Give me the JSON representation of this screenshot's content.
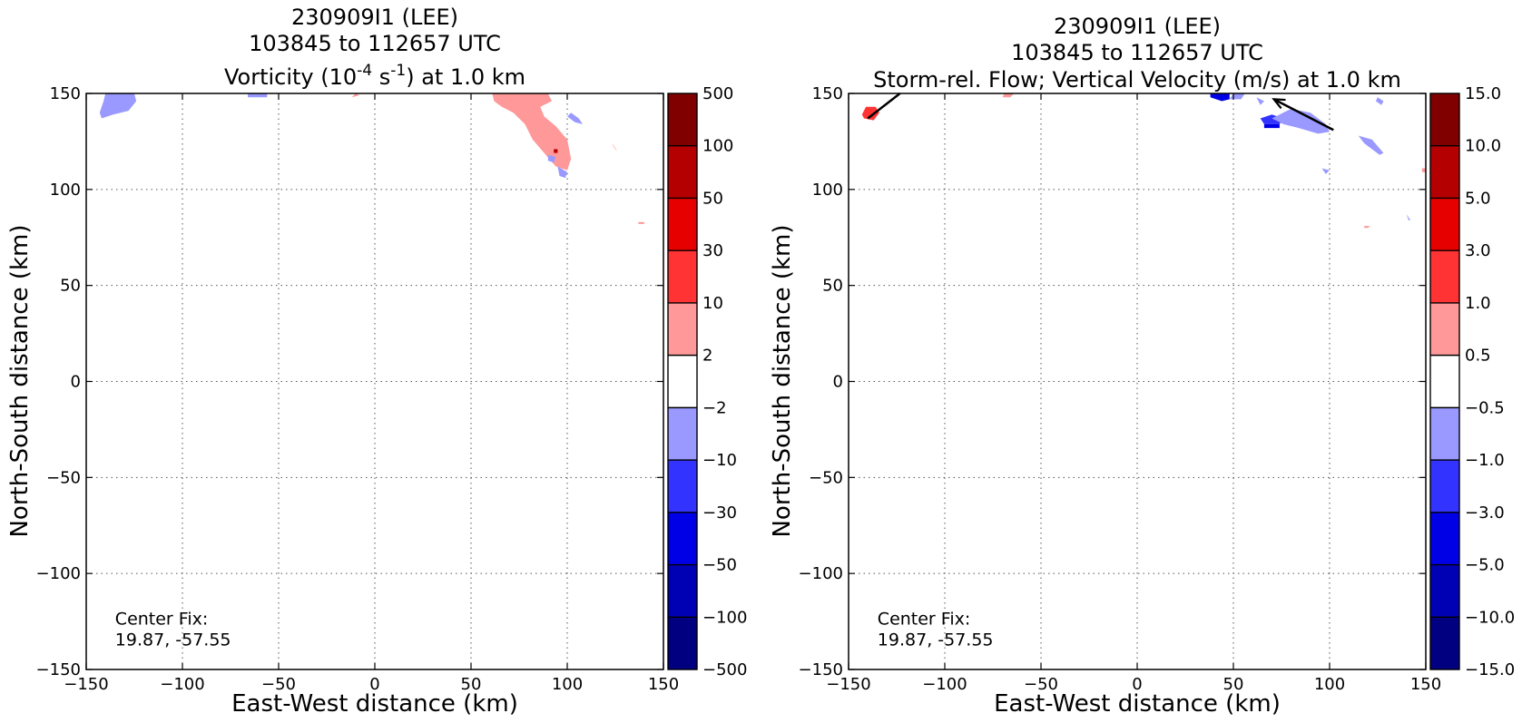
{
  "chart_data": [
    {
      "type": "heatmap",
      "title_lines": [
        "230909I1 (LEE)",
        "103845 to 112657 UTC"
      ],
      "title_line3": {
        "pre": "Vorticity (10",
        "sup1": "-4",
        "mid": " s",
        "sup2": "-1",
        "post": ") at 1.0 km"
      },
      "xlabel": "East-West distance (km)",
      "ylabel": "North-South distance (km)",
      "xlim": [
        -150,
        150
      ],
      "ylim": [
        -150,
        150
      ],
      "xticks": [
        -150,
        -100,
        -50,
        0,
        50,
        100,
        150
      ],
      "yticks": [
        -150,
        -100,
        -50,
        0,
        50,
        100,
        150
      ],
      "xtick_labels": [
        "−150",
        "−100",
        "−50",
        "0",
        "50",
        "100",
        "150"
      ],
      "ytick_labels": [
        "−150",
        "−100",
        "−50",
        "0",
        "50",
        "100",
        "150"
      ],
      "grid": true,
      "annotation": {
        "line1": "Center Fix:",
        "line2": "19.87, -57.55",
        "x": -135,
        "y": -137
      },
      "colorbar": {
        "levels": [
          "−500",
          "−100",
          "−50",
          "−30",
          "−10",
          "−2",
          "2",
          "10",
          "30",
          "50",
          "100",
          "500"
        ],
        "colors": [
          "#000080",
          "#0000b4",
          "#0000e6",
          "#3333ff",
          "#9999ff",
          "#ffffff",
          "#ff9999",
          "#ff3333",
          "#e60000",
          "#b40000",
          "#800000"
        ]
      },
      "regions": [
        {
          "color": "#9999ff",
          "points": [
            [
              -143,
              140
            ],
            [
              -141,
              146
            ],
            [
              -140,
              150
            ],
            [
              -125,
              150
            ],
            [
              -124,
              146
            ],
            [
              -128,
              141
            ],
            [
              -136,
              139
            ],
            [
              -142,
              137
            ]
          ]
        },
        {
          "color": "#9999ff",
          "points": [
            [
              -66,
              148
            ],
            [
              -66,
              150
            ],
            [
              -56,
              150
            ],
            [
              -56,
              148
            ]
          ]
        },
        {
          "color": "#ff9999",
          "points": [
            [
              -12,
              148
            ],
            [
              -10,
              150
            ],
            [
              -8,
              149
            ]
          ]
        },
        {
          "color": "#ff9999",
          "points": [
            [
              61,
              150
            ],
            [
              90,
              150
            ],
            [
              92,
              146
            ],
            [
              86,
              143
            ],
            [
              88,
              138
            ],
            [
              94,
              133
            ],
            [
              100,
              126
            ],
            [
              102,
              116
            ],
            [
              100,
              110
            ],
            [
              94,
              112
            ],
            [
              88,
              119
            ],
            [
              82,
              126
            ],
            [
              78,
              134
            ],
            [
              72,
              140
            ],
            [
              66,
              143
            ],
            [
              62,
              146
            ]
          ]
        },
        {
          "color": "#9999ff",
          "points": [
            [
              100,
              138
            ],
            [
              104,
              135
            ],
            [
              108,
              134
            ],
            [
              106,
              137
            ],
            [
              102,
              140
            ]
          ]
        },
        {
          "color": "#9999ff",
          "points": [
            [
              95,
              112
            ],
            [
              100,
              109
            ],
            [
              99,
              106
            ],
            [
              96,
              107
            ]
          ]
        },
        {
          "color": "#9999ff",
          "points": [
            [
              90,
              118
            ],
            [
              94,
              117
            ],
            [
              93,
              114
            ],
            [
              90,
              115
            ]
          ]
        },
        {
          "color": "#b40000",
          "points": [
            [
              93,
              121
            ],
            [
              95,
              121
            ],
            [
              95,
              119
            ],
            [
              93,
              119
            ]
          ]
        },
        {
          "color": "#ff9999",
          "points": [
            [
              123,
              124
            ],
            [
              125,
              121
            ],
            [
              126,
              120
            ],
            [
              124,
              123
            ]
          ]
        },
        {
          "color": "#ff9999",
          "points": [
            [
              137,
              83
            ],
            [
              140,
              83
            ],
            [
              140,
              82
            ],
            [
              137,
              82
            ]
          ]
        }
      ],
      "arrows": []
    },
    {
      "type": "heatmap",
      "title_lines": [
        "230909I1 (LEE)",
        "103845 to 112657 UTC"
      ],
      "title_line3_text": "Storm-rel. Flow; Vertical Velocity (m/s) at 1.0 km",
      "xlabel": "East-West distance (km)",
      "ylabel": "North-South distance (km)",
      "xlim": [
        -150,
        150
      ],
      "ylim": [
        -150,
        150
      ],
      "xticks": [
        -150,
        -100,
        -50,
        0,
        50,
        100,
        150
      ],
      "yticks": [
        -150,
        -100,
        -50,
        0,
        50,
        100,
        150
      ],
      "xtick_labels": [
        "−150",
        "−100",
        "−50",
        "0",
        "50",
        "100",
        "150"
      ],
      "ytick_labels": [
        "−150",
        "−100",
        "−50",
        "0",
        "50",
        "100",
        "150"
      ],
      "grid": true,
      "annotation": {
        "line1": "Center Fix:",
        "line2": "19.87, -57.55",
        "x": -135,
        "y": -137
      },
      "colorbar": {
        "levels": [
          "−15.0",
          "−10.0",
          "−5.0",
          "−3.0",
          "−1.0",
          "−0.5",
          "0.5",
          "1.0",
          "3.0",
          "5.0",
          "10.0",
          "15.0"
        ],
        "colors": [
          "#000080",
          "#0000b4",
          "#0000e6",
          "#3333ff",
          "#9999ff",
          "#ffffff",
          "#ff9999",
          "#ff3333",
          "#e60000",
          "#b40000",
          "#800000"
        ]
      },
      "regions": [
        {
          "color": "#ff3333",
          "points": [
            [
              -143,
              139
            ],
            [
              -141,
              143
            ],
            [
              -136,
              143
            ],
            [
              -134,
              140
            ],
            [
              -137,
              136
            ],
            [
              -142,
              137
            ]
          ]
        },
        {
          "color": "#ff9999",
          "points": [
            [
              -70,
              148
            ],
            [
              -69,
              150
            ],
            [
              -64,
              150
            ],
            [
              -66,
              148
            ]
          ]
        },
        {
          "color": "#0000e6",
          "points": [
            [
              38,
              148
            ],
            [
              38,
              150
            ],
            [
              48,
              150
            ],
            [
              48,
              147
            ],
            [
              44,
              146
            ]
          ]
        },
        {
          "color": "#9999ff",
          "points": [
            [
              48,
              147
            ],
            [
              50,
              150
            ],
            [
              56,
              150
            ],
            [
              54,
              147
            ]
          ]
        },
        {
          "color": "#9999ff",
          "points": [
            [
              62,
              148
            ],
            [
              66,
              146
            ],
            [
              64,
              144
            ]
          ]
        },
        {
          "color": "#3333ff",
          "points": [
            [
              64,
              137
            ],
            [
              70,
              139
            ],
            [
              76,
              137
            ],
            [
              74,
              134
            ],
            [
              66,
              134
            ]
          ]
        },
        {
          "color": "#0000e6",
          "points": [
            [
              66,
              134
            ],
            [
              74,
              134
            ],
            [
              74,
              132
            ],
            [
              66,
              132
            ]
          ]
        },
        {
          "color": "#9999ff",
          "points": [
            [
              70,
              137
            ],
            [
              80,
              142
            ],
            [
              90,
              140
            ],
            [
              98,
              134
            ],
            [
              100,
              130
            ],
            [
              94,
              129
            ],
            [
              84,
              132
            ],
            [
              76,
              134
            ]
          ]
        },
        {
          "color": "#9999ff",
          "points": [
            [
              96,
              111
            ],
            [
              100,
              110
            ],
            [
              98,
              108
            ]
          ]
        },
        {
          "color": "#9999ff",
          "points": [
            [
              115,
              128
            ],
            [
              122,
              126
            ],
            [
              128,
              119
            ],
            [
              126,
              118
            ],
            [
              118,
              124
            ]
          ]
        },
        {
          "color": "#9999ff",
          "points": [
            [
              125,
              148
            ],
            [
              128,
              146
            ],
            [
              127,
              144
            ],
            [
              124,
              146
            ]
          ]
        },
        {
          "color": "#ff9999",
          "points": [
            [
              118,
              81
            ],
            [
              121,
              81
            ],
            [
              120,
              80
            ],
            [
              118,
              80
            ]
          ]
        },
        {
          "color": "#ff9999",
          "points": [
            [
              148,
              111
            ],
            [
              150,
              111
            ],
            [
              150,
              109
            ],
            [
              148,
              109
            ]
          ]
        },
        {
          "color": "#9999ff",
          "points": [
            [
              140,
              87
            ],
            [
              142,
              84
            ],
            [
              141,
              84
            ]
          ]
        }
      ],
      "arrows": [
        {
          "x1": -140,
          "y1": 137,
          "x2": -122,
          "y2": 151
        },
        {
          "x1": 102,
          "y1": 131,
          "x2": 71,
          "y2": 147
        },
        {
          "x1": 64,
          "y1": 150,
          "x2": 55,
          "y2": 152
        }
      ]
    }
  ]
}
